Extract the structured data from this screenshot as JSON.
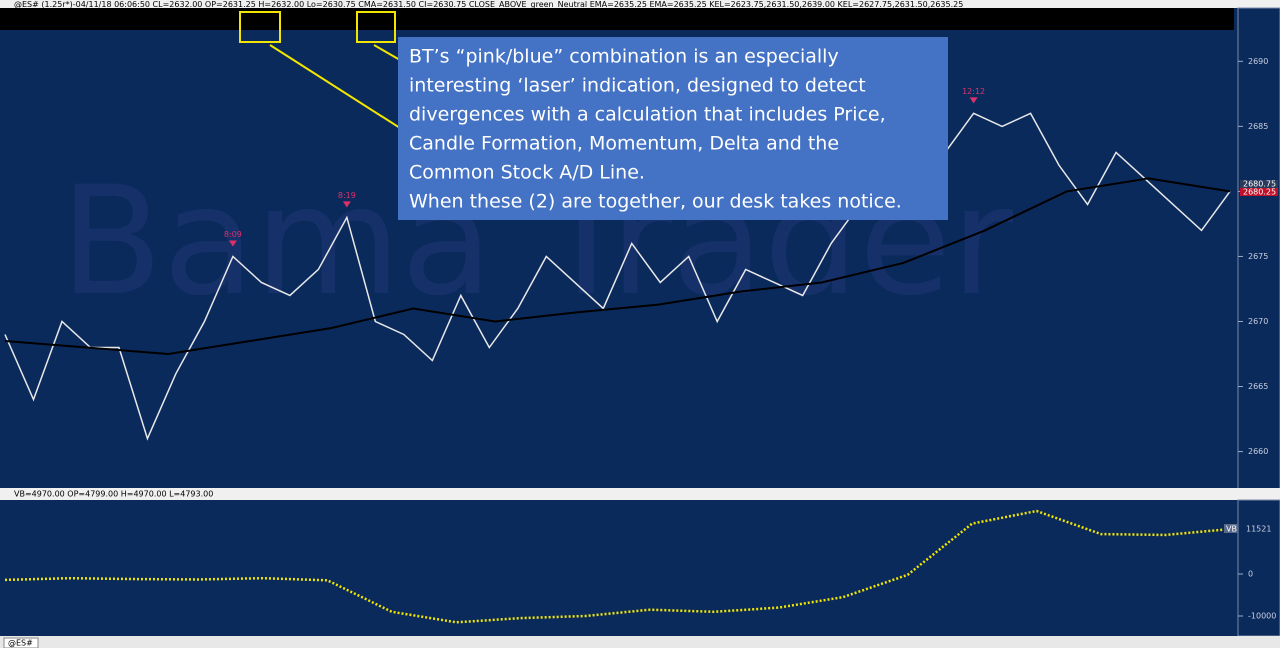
{
  "header": {
    "text": "@ES# (1.25r*)-04/11/18 06:06:50 CL=2632.00 OP=2631.25 H=2632.00 Lo=2630.75 CMA=2631.50 CI=2630.75 CLOSE_ABOVE_green_Neutral EMA=2635.25 EMA=2635.25 KEL=2623.75,2631.50,2639.00 KEL=2627.75,2631.50,2635.25"
  },
  "annotation": {
    "lines": [
      "BT’s “pink/blue” combination is an especially",
      "interesting ‘laser’ indication, designed to detect",
      "divergences with a calculation that includes Price,",
      "Candle Formation, Momentum, Delta and the",
      "Common Stock A/D Line.",
      "When these (2) are together, our desk takes notice."
    ]
  },
  "watermark": "Bama Trader",
  "price_panel": {
    "ylim": [
      2657.2,
      2694.1
    ],
    "yticks": [
      2660,
      2665,
      2670,
      2675,
      2680,
      2685,
      2690
    ],
    "close": [
      2669,
      2664,
      2670,
      2668,
      2668,
      2661,
      2666,
      2670,
      2675,
      2673,
      2672,
      2674,
      2678,
      2670,
      2669,
      2667,
      2672,
      2668,
      2671,
      2675,
      2673,
      2671,
      2676,
      2673,
      2675,
      2670,
      2674,
      2673,
      2672,
      2676,
      2679,
      2678,
      2679,
      2683,
      2686,
      2685,
      2686,
      2682,
      2679,
      2683,
      2681,
      2679,
      2677,
      2680
    ],
    "ema": [
      2668.5,
      2668,
      2667.5,
      2668.5,
      2669.5,
      2671,
      2670,
      2670.7,
      2671.3,
      2672.3,
      2673,
      2674.5,
      2677,
      2680,
      2681,
      2680
    ],
    "signals": [
      {
        "label": "8:09",
        "index": 8
      },
      {
        "label": "8:19",
        "index": 12
      },
      {
        "label": "12:12",
        "index": 34
      }
    ],
    "last_prices": [
      "2680.75",
      "2680.25"
    ]
  },
  "volume_panel": {
    "header": "VB=4970.00 OP=4799.00 H=4970.00 L=4793.00",
    "ylim": [
      -14760,
      17620
    ],
    "yticks": [
      0,
      -10000
    ],
    "values": [
      -1400,
      -1000,
      -1200,
      -1300,
      -1000,
      -1500,
      -9000,
      -11500,
      -10500,
      -10000,
      -8500,
      -9000,
      -8000,
      -5500,
      -200,
      12000,
      15000,
      9500,
      9300,
      10700
    ],
    "last_label": "VB",
    "last_value": "11521"
  },
  "tab": "@ES#"
}
